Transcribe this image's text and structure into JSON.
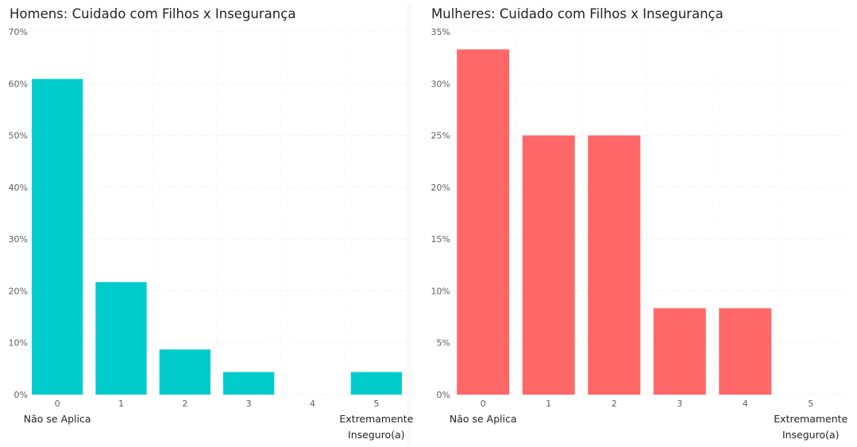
{
  "chart_data": [
    {
      "id": "men",
      "type": "bar",
      "title": "Homens: Cuidado com Filhos x Insegurança",
      "categories": [
        "0",
        "1",
        "2",
        "3",
        "4",
        "5"
      ],
      "values": [
        60.9,
        21.7,
        8.7,
        4.35,
        0,
        4.35
      ],
      "ylim": [
        0,
        70
      ],
      "y_ticks": [
        0,
        10,
        20,
        30,
        40,
        50,
        60,
        70
      ],
      "y_tick_labels": [
        "0%",
        "10%",
        "20%",
        "30%",
        "40%",
        "50%",
        "60%",
        "70%"
      ],
      "extreme_labels": {
        "left": "Não se Aplica",
        "right_line1": "Extremamente",
        "right_line2": "Inseguro(a)"
      },
      "color": "#01cbcb",
      "grid": true
    },
    {
      "id": "women",
      "type": "bar",
      "title": "Mulheres: Cuidado com Filhos x Insegurança",
      "categories": [
        "0",
        "1",
        "2",
        "3",
        "4",
        "5"
      ],
      "values": [
        33.3,
        25.0,
        25.0,
        8.33,
        8.33,
        0
      ],
      "ylim": [
        0,
        35
      ],
      "y_ticks": [
        0,
        5,
        10,
        15,
        20,
        25,
        30,
        35
      ],
      "y_tick_labels": [
        "0%",
        "5%",
        "10%",
        "15%",
        "20%",
        "25%",
        "30%",
        "35%"
      ],
      "extreme_labels": {
        "left": "Não se Aplica",
        "right_line1": "Extremamente",
        "right_line2": "Inseguro(a)"
      },
      "color": "#fe6869",
      "grid": true
    }
  ]
}
